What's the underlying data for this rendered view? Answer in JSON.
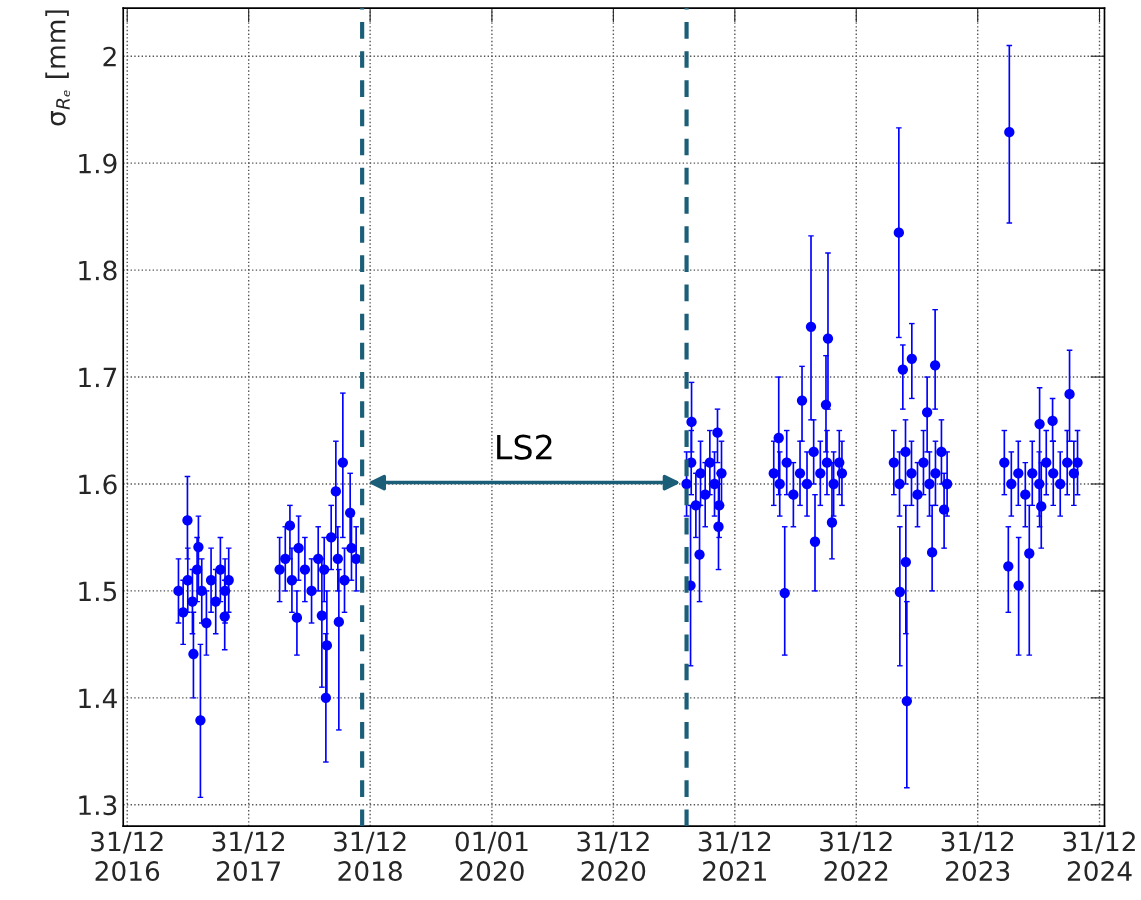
{
  "chart_data": {
    "type": "scatter",
    "ylabel": "σ$_{Rₑ}$ [mm]",
    "marker": "circle",
    "grid": true,
    "legend": false,
    "xlim": [
      "2016-12-19",
      "2025-01-15"
    ],
    "ylim": [
      1.28,
      2.045
    ],
    "xticks": [
      {
        "value": "2016-12-31",
        "label": "31/12\n2016"
      },
      {
        "value": "2017-12-31",
        "label": "31/12\n2017"
      },
      {
        "value": "2018-12-31",
        "label": "31/12\n2018"
      },
      {
        "value": "2020-01-01",
        "label": "01/01\n2020"
      },
      {
        "value": "2020-12-31",
        "label": "31/12\n2020"
      },
      {
        "value": "2021-12-31",
        "label": "31/12\n2021"
      },
      {
        "value": "2022-12-31",
        "label": "31/12\n2022"
      },
      {
        "value": "2023-12-31",
        "label": "31/12\n2023"
      },
      {
        "value": "2024-12-31",
        "label": "31/12\n2024"
      }
    ],
    "yticks": [
      1.3,
      1.4,
      1.5,
      1.6,
      1.7,
      1.8,
      1.9,
      2
    ],
    "ref_lines": [
      {
        "axis": "x",
        "value": "2018-12-07",
        "color": "#1b5e78",
        "line_style": "dashed"
      },
      {
        "axis": "x",
        "value": "2021-08-08",
        "color": "#1b5e78",
        "line_style": "dashed"
      }
    ],
    "annotations": [
      "LS2"
    ],
    "series": [
      {
        "color": "#0000ff",
        "x": [
          "2017-06-03",
          "2017-06-17",
          "2017-07-01",
          "2017-07-15",
          "2017-07-29",
          "2017-08-12",
          "2017-08-26",
          "2017-09-09",
          "2017-09-23",
          "2017-10-07",
          "2017-10-21",
          "2017-11-01",
          "2017-06-30",
          "2017-08-08",
          "2017-07-18",
          "2017-10-20",
          "2017-08-02",
          "2018-04-03",
          "2018-04-20",
          "2018-05-10",
          "2018-05-30",
          "2018-06-18",
          "2018-07-08",
          "2018-07-28",
          "2018-08-15",
          "2018-09-05",
          "2018-09-25",
          "2018-10-15",
          "2018-11-05",
          "2018-11-19",
          "2018-05-04",
          "2018-05-25",
          "2018-08-20",
          "2018-08-23",
          "2018-10-10",
          "2018-09-19",
          "2018-11-01",
          "2018-09-28",
          "2018-08-08",
          "2021-08-08",
          "2021-08-22",
          "2021-09-05",
          "2021-09-19",
          "2021-10-03",
          "2021-10-17",
          "2021-10-31",
          "2021-11-14",
          "2021-11-21",
          "2021-08-20",
          "2021-08-23",
          "2021-09-16",
          "2021-11-09",
          "2021-11-12",
          "2022-04-27",
          "2022-05-15",
          "2022-06-05",
          "2022-06-25",
          "2022-07-15",
          "2022-08-05",
          "2022-08-25",
          "2022-09-14",
          "2022-10-04",
          "2022-10-24",
          "2022-11-10",
          "2022-11-18",
          "2022-08-17",
          "2022-10-07",
          "2022-05-30",
          "2022-07-21",
          "2022-05-12",
          "2022-08-29",
          "2022-10-01",
          "2022-10-19",
          "2023-04-23",
          "2023-05-10",
          "2023-05-28",
          "2023-06-15",
          "2023-07-03",
          "2023-07-21",
          "2023-08-08",
          "2023-08-26",
          "2023-09-13",
          "2023-09-30",
          "2023-05-08",
          "2023-06-01",
          "2023-05-11",
          "2023-05-29",
          "2023-06-16",
          "2023-05-20",
          "2023-08-25",
          "2023-08-01",
          "2023-08-16",
          "2023-09-21",
          "2024-03-20",
          "2024-04-10",
          "2024-05-01",
          "2024-05-22",
          "2024-06-12",
          "2024-07-03",
          "2024-07-24",
          "2024-08-14",
          "2024-09-04",
          "2024-09-25",
          "2024-10-15",
          "2024-10-26",
          "2024-04-04",
          "2024-04-01",
          "2024-05-02",
          "2024-06-03",
          "2024-07-04",
          "2024-08-12",
          "2024-10-02",
          "2024-07-09"
        ],
        "values": [
          1.5,
          1.48,
          1.51,
          1.49,
          1.52,
          1.5,
          1.47,
          1.51,
          1.49,
          1.52,
          1.5,
          1.51,
          1.566,
          1.379,
          1.441,
          1.476,
          1.541,
          1.52,
          1.53,
          1.51,
          1.54,
          1.52,
          1.5,
          1.53,
          1.52,
          1.55,
          1.53,
          1.51,
          1.54,
          1.53,
          1.561,
          1.475,
          1.4,
          1.449,
          1.62,
          1.593,
          1.573,
          1.471,
          1.477,
          1.6,
          1.62,
          1.58,
          1.61,
          1.59,
          1.62,
          1.6,
          1.58,
          1.61,
          1.505,
          1.658,
          1.534,
          1.648,
          1.56,
          1.61,
          1.6,
          1.62,
          1.59,
          1.61,
          1.6,
          1.63,
          1.61,
          1.62,
          1.6,
          1.62,
          1.61,
          1.747,
          1.736,
          1.498,
          1.678,
          1.643,
          1.546,
          1.674,
          1.564,
          1.62,
          1.6,
          1.63,
          1.61,
          1.59,
          1.62,
          1.6,
          1.61,
          1.63,
          1.6,
          1.835,
          1.397,
          1.499,
          1.527,
          1.717,
          1.707,
          1.711,
          1.667,
          1.536,
          1.576,
          1.62,
          1.6,
          1.61,
          1.59,
          1.61,
          1.6,
          1.62,
          1.61,
          1.6,
          1.62,
          1.61,
          1.62,
          1.929,
          1.523,
          1.505,
          1.535,
          1.656,
          1.659,
          1.684,
          1.579
        ],
        "errors": [
          0.03,
          0.03,
          0.03,
          0.03,
          0.03,
          0.03,
          0.03,
          0.03,
          0.03,
          0.03,
          0.03,
          0.03,
          [
            1.53,
            1.607
          ],
          [
            1.307,
            1.45
          ],
          [
            1.4,
            1.48
          ],
          [
            1.445,
            1.51
          ],
          [
            1.5,
            1.57
          ],
          0.03,
          0.03,
          0.03,
          0.03,
          0.03,
          0.03,
          0.03,
          0.03,
          0.03,
          0.03,
          0.03,
          0.03,
          0.03,
          [
            1.53,
            1.58
          ],
          [
            1.44,
            1.5
          ],
          [
            1.34,
            1.46
          ],
          [
            1.4,
            1.5
          ],
          [
            1.55,
            1.685
          ],
          [
            1.55,
            1.64
          ],
          [
            1.54,
            1.61
          ],
          [
            1.37,
            1.52
          ],
          [
            1.41,
            1.53
          ],
          0.03,
          0.03,
          0.03,
          0.03,
          0.03,
          0.03,
          0.03,
          0.03,
          0.03,
          [
            1.43,
            1.58
          ],
          [
            1.63,
            1.695
          ],
          [
            1.49,
            1.58
          ],
          [
            1.62,
            1.67
          ],
          [
            1.52,
            1.6
          ],
          0.03,
          0.03,
          0.03,
          0.03,
          0.03,
          0.03,
          0.03,
          0.03,
          0.03,
          0.03,
          0.03,
          0.03,
          [
            1.66,
            1.832
          ],
          [
            1.67,
            1.816
          ],
          [
            1.44,
            1.56
          ],
          [
            1.64,
            1.71
          ],
          [
            1.59,
            1.7
          ],
          [
            1.5,
            1.59
          ],
          [
            1.63,
            1.72
          ],
          [
            1.53,
            1.62
          ],
          0.03,
          0.03,
          0.03,
          0.03,
          0.03,
          0.03,
          0.03,
          0.03,
          0.03,
          0.03,
          [
            1.737,
            1.933
          ],
          [
            1.316,
            1.49
          ],
          [
            1.43,
            1.56
          ],
          [
            1.46,
            1.58
          ],
          [
            1.68,
            1.75
          ],
          [
            1.67,
            1.73
          ],
          [
            1.67,
            1.763
          ],
          [
            1.63,
            1.7
          ],
          [
            1.5,
            1.58
          ],
          [
            1.54,
            1.61
          ],
          0.03,
          0.03,
          0.03,
          0.03,
          0.03,
          0.03,
          0.03,
          0.03,
          0.03,
          0.03,
          0.03,
          0.03,
          [
            1.844,
            2.01
          ],
          [
            1.48,
            1.56
          ],
          [
            1.44,
            1.55
          ],
          [
            1.44,
            1.58
          ],
          [
            1.56,
            1.69
          ],
          [
            1.64,
            1.68
          ],
          [
            1.64,
            1.725
          ],
          [
            1.54,
            1.62
          ]
        ]
      }
    ]
  }
}
